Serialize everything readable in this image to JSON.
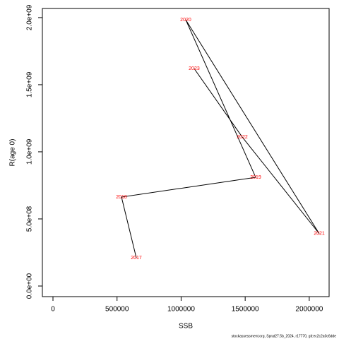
{
  "chart_data": {
    "type": "line",
    "xlabel": "SSB",
    "ylabel": "R(age 0)",
    "x": [
      650500,
      534700,
      1582000,
      1036000,
      2078000,
      1477000,
      1102000
    ],
    "series": [
      {
        "color": "#000000",
        "label_color": "#ff0000",
        "labels": [
          "2017",
          "2018",
          "2019",
          "2020",
          "2021",
          "2022",
          "2023"
        ],
        "values": [
          210000000,
          663000000,
          810000000,
          1984000000,
          390000000,
          1110000000,
          1620000000
        ]
      }
    ],
    "xlim": [
      -82700,
      2155000
    ],
    "ylim": [
      -79000000,
      2068000000
    ],
    "xticks": [
      0,
      500000,
      1000000,
      1500000,
      2000000
    ],
    "yticks": [
      {
        "value": 0,
        "label": "0.0e+00"
      },
      {
        "value": 500000000,
        "label": "5.0e+08"
      },
      {
        "value": 1000000000,
        "label": "1.0e+09"
      },
      {
        "value": 1500000000,
        "label": "1.5e+09"
      },
      {
        "value": 2000000000,
        "label": "2.0e+09"
      }
    ],
    "footnote": "stockassessment.org, Sprat27.5b_2024, r17770, git:ec2c2a0c6dde"
  }
}
